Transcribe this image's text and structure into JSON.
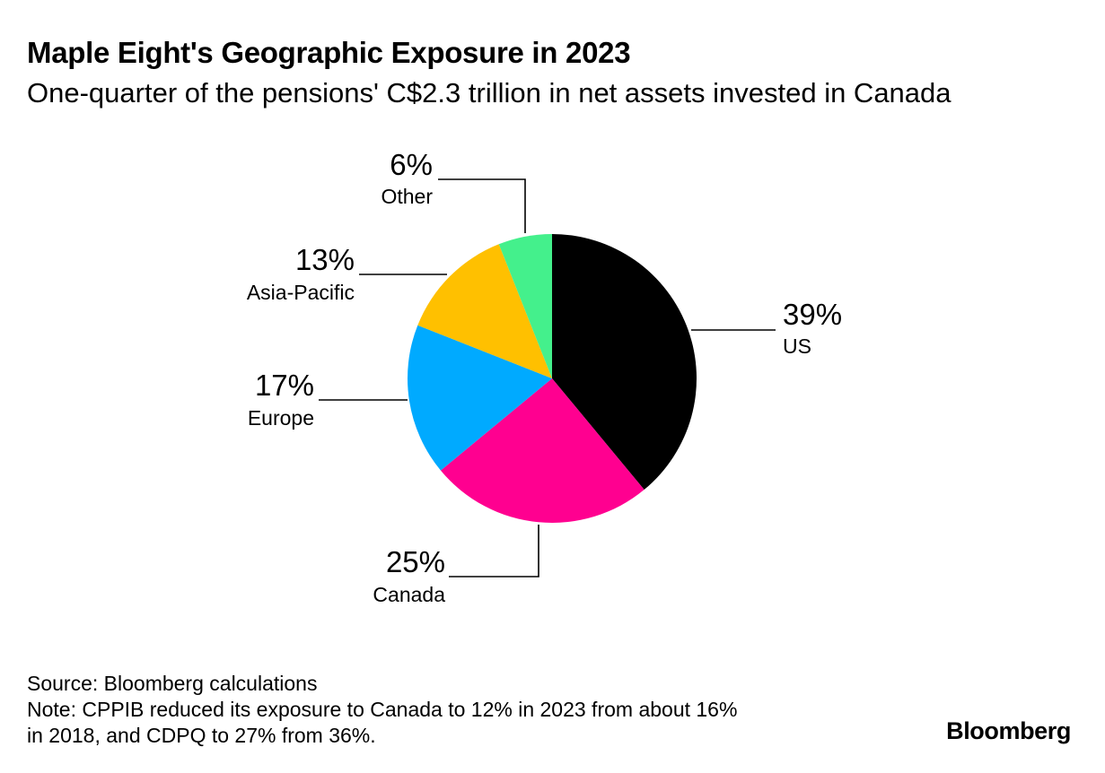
{
  "chart_data": {
    "type": "pie",
    "title": "Maple Eight's Geographic Exposure in 2023",
    "subtitle": "One-quarter of the pensions' C$2.3 trillion in net assets invested in Canada",
    "unit": "%",
    "start_angle_deg": 0,
    "direction": "clockwise",
    "slices": [
      {
        "label": "US",
        "value": 39,
        "display": "39%",
        "color": "#000000"
      },
      {
        "label": "Canada",
        "value": 25,
        "display": "25%",
        "color": "#ff0090"
      },
      {
        "label": "Europe",
        "value": 17,
        "display": "17%",
        "color": "#00aaff"
      },
      {
        "label": "Asia-Pacific",
        "value": 13,
        "display": "13%",
        "color": "#ffc000"
      },
      {
        "label": "Other",
        "value": 6,
        "display": "6%",
        "color": "#44f08c"
      }
    ]
  },
  "footer": {
    "source": "Source: Bloomberg calculations",
    "note_line1": "Note: CPPIB reduced its exposure to Canada to 12% in 2023 from about 16%",
    "note_line2": "in 2018, and CDPQ to 27% from 36%.",
    "brand": "Bloomberg"
  }
}
